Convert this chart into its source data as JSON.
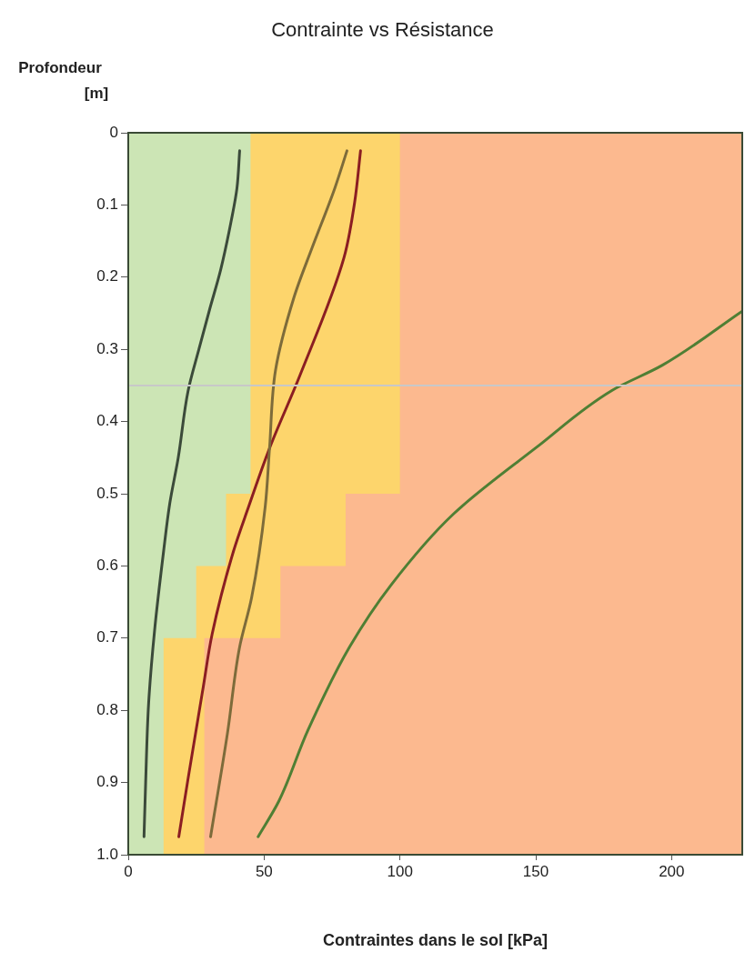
{
  "chart_data": {
    "type": "line",
    "title": "Contrainte vs Résistance",
    "xlabel": "Contraintes dans le sol [kPa]",
    "ylabel": "Profondeur\n[m]",
    "xlim": [
      0,
      226
    ],
    "xticks": [
      0,
      50,
      100,
      150,
      200
    ],
    "ylim": [
      1,
      0
    ],
    "yticks": [
      0,
      0.1,
      0.2,
      0.3,
      0.4,
      0.5,
      0.6,
      0.7,
      0.8,
      0.9,
      {
        "value": 1,
        "label": "1.0"
      }
    ],
    "bands": [
      {
        "axis": "x",
        "from": 0,
        "to": 226,
        "color": "#fcb98f"
      }
    ],
    "ref_lines": [
      {
        "axis": "y",
        "value": 0.35,
        "color": "#c8c8c8"
      }
    ],
    "series": [
      {
        "type": "area",
        "color": "#fdd56c",
        "x": [
          0,
          100,
          100,
          80,
          80,
          56,
          56,
          28,
          28,
          0
        ],
        "values": [
          0,
          0,
          0.5,
          0.5,
          0.6,
          0.6,
          0.7,
          0.7,
          1,
          1
        ]
      },
      {
        "type": "area",
        "color": "#cce5b5",
        "x": [
          0,
          45,
          45,
          36,
          36,
          25,
          25,
          13,
          13,
          0
        ],
        "values": [
          0,
          0,
          0.5,
          0.5,
          0.6,
          0.6,
          0.7,
          0.7,
          1,
          1
        ]
      },
      {
        "type": "line",
        "color": "#3b4a3a",
        "x": [
          41,
          40,
          38,
          34,
          30,
          26,
          22,
          18.4,
          15.3,
          13,
          9.7,
          7.5,
          6.4,
          5.8
        ],
        "values": [
          0.025,
          0.077,
          0.12,
          0.19,
          0.244,
          0.3,
          0.358,
          0.45,
          0.513,
          0.58,
          0.689,
          0.79,
          0.9,
          0.975
        ]
      },
      {
        "type": "line",
        "color": "#7d6b3a",
        "x": [
          80.5,
          76,
          67.6,
          61,
          54.2,
          52,
          50.4,
          45.4,
          40.9,
          36.5,
          30.3
        ],
        "values": [
          0.025,
          0.077,
          0.16,
          0.228,
          0.329,
          0.437,
          0.518,
          0.644,
          0.714,
          0.832,
          0.975
        ]
      },
      {
        "type": "line",
        "color": "#8b1e22",
        "x": [
          85.5,
          83.3,
          79.4,
          63.2,
          52,
          44.3,
          38.7,
          30.9,
          27.5,
          22,
          18.6
        ],
        "values": [
          0.025,
          0.097,
          0.173,
          0.336,
          0.437,
          0.518,
          0.58,
          0.694,
          0.77,
          0.895,
          0.975
        ]
      },
      {
        "type": "line",
        "color": "#4f7f34",
        "x": [
          226,
          196.6,
          178,
          150.5,
          119.7,
          96.8,
          81.5,
          66.2,
          55.4,
          47.8
        ],
        "values": [
          0.247,
          0.322,
          0.357,
          0.435,
          0.528,
          0.626,
          0.712,
          0.827,
          0.926,
          0.975
        ]
      }
    ]
  }
}
